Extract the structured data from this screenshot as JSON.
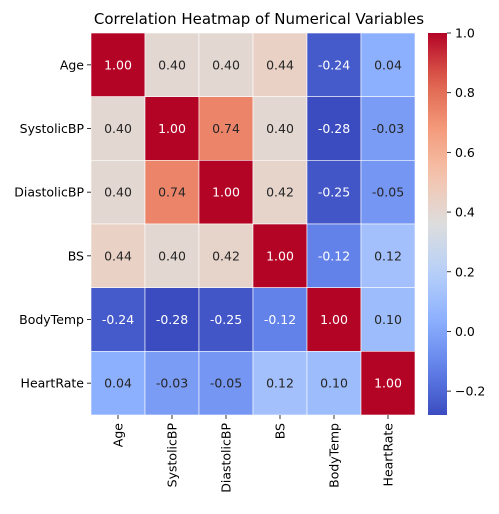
{
  "chart_data": {
    "type": "heatmap",
    "title": "Correlation Heatmap of Numerical Variables",
    "x_labels": [
      "Age",
      "SystolicBP",
      "DiastolicBP",
      "BS",
      "BodyTemp",
      "HeartRate"
    ],
    "y_labels": [
      "Age",
      "SystolicBP",
      "DiastolicBP",
      "BS",
      "BodyTemp",
      "HeartRate"
    ],
    "values": [
      [
        1.0,
        0.4,
        0.4,
        0.44,
        -0.24,
        0.04
      ],
      [
        0.4,
        1.0,
        0.74,
        0.4,
        -0.28,
        -0.03
      ],
      [
        0.4,
        0.74,
        1.0,
        0.42,
        -0.25,
        -0.05
      ],
      [
        0.44,
        0.4,
        0.42,
        1.0,
        -0.12,
        0.12
      ],
      [
        -0.24,
        -0.28,
        -0.25,
        -0.12,
        1.0,
        0.1
      ],
      [
        0.04,
        -0.03,
        -0.05,
        0.12,
        0.1,
        1.0
      ]
    ],
    "colormap": "coolwarm",
    "vmin": -0.28,
    "vmax": 1.0,
    "colorbar_ticks": [
      "1.0",
      "0.8",
      "0.6",
      "0.4",
      "0.2",
      "0.0",
      "−0.2"
    ],
    "colorbar_tick_values": [
      1.0,
      0.8,
      0.6,
      0.4,
      0.2,
      0.0,
      -0.2
    ],
    "grid": false,
    "annotations": true
  }
}
